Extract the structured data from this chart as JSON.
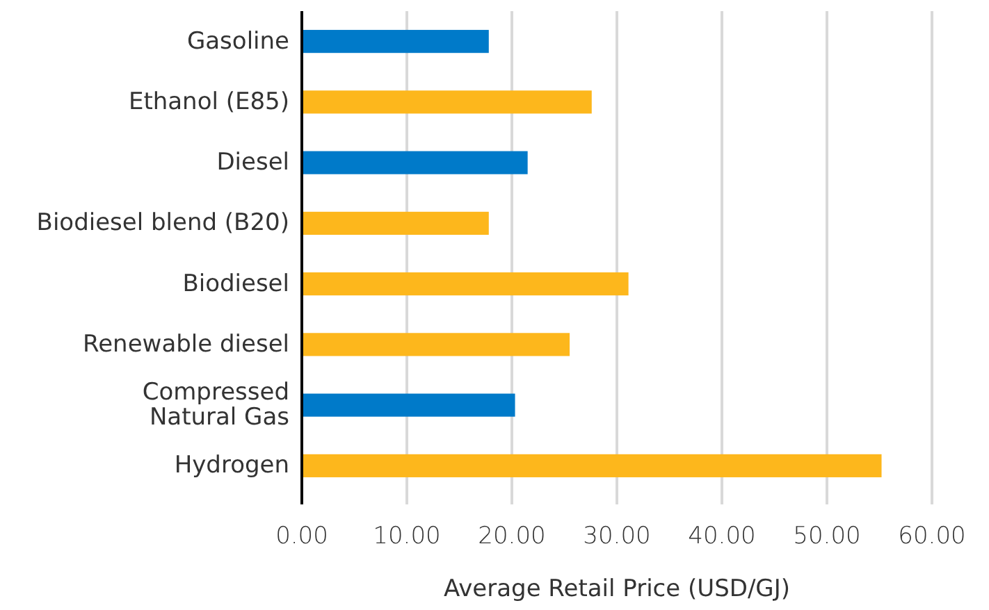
{
  "chart_data": {
    "type": "bar",
    "orientation": "horizontal",
    "xlabel": "Average Retail Price (USD/GJ)",
    "categories": [
      "Gasoline",
      "Ethanol (E85)",
      "Diesel",
      "Biodiesel blend (B20)",
      "Biodiesel",
      "Renewable diesel",
      "Compressed\nNatural Gas",
      "Hydrogen"
    ],
    "values": [
      17.8,
      27.6,
      21.5,
      17.8,
      31.1,
      25.5,
      20.3,
      55.2
    ],
    "colors": [
      "#007ac9",
      "#fdb71c",
      "#007ac9",
      "#fdb71c",
      "#fdb71c",
      "#fdb71c",
      "#007ac9",
      "#fdb71c"
    ],
    "xlim": [
      0,
      60
    ],
    "xticks": [
      {
        "value": 0,
        "label": "0.00"
      },
      {
        "value": 10,
        "label": "10.00"
      },
      {
        "value": 20,
        "label": "20.00"
      },
      {
        "value": 30,
        "label": "30.00"
      },
      {
        "value": 40,
        "label": "40.00"
      },
      {
        "value": 50,
        "label": "50.00"
      },
      {
        "value": 60,
        "label": "60.00"
      }
    ],
    "grid": "x"
  }
}
